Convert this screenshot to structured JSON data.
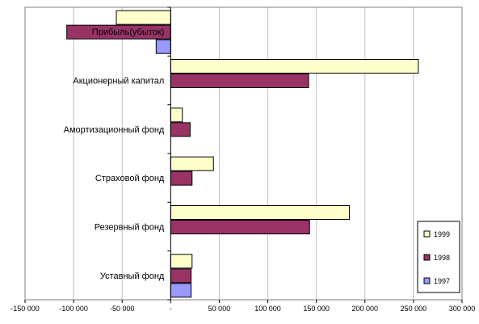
{
  "chart_data": {
    "type": "bar",
    "orientation": "horizontal",
    "categories": [
      "Прибыль(убыток)",
      "Акционерный капитал",
      "Амортизационный фонд",
      "Страховой фонд",
      "Резервный фонд",
      "Уставный фонд"
    ],
    "series": [
      {
        "name": "1999",
        "color": "#ffffcc",
        "values": [
          -56000,
          255000,
          12000,
          44000,
          184000,
          22000
        ]
      },
      {
        "name": "1998",
        "color": "#993366",
        "values": [
          -107000,
          142000,
          20000,
          22000,
          143000,
          21000
        ]
      },
      {
        "name": "1997",
        "color": "#9999ff",
        "values": [
          -15000,
          null,
          null,
          null,
          null,
          21000
        ]
      }
    ],
    "xlim": [
      -150000,
      300000
    ],
    "x_ticks": [
      -150000,
      -100000,
      -50000,
      0,
      50000,
      100000,
      150000,
      200000,
      250000,
      300000
    ],
    "x_tick_labels": [
      "-150 000",
      "-100 000",
      "-50 000",
      "-",
      "50 000",
      "100 000",
      "150 000",
      "200 000",
      "250 000",
      "300 000"
    ],
    "grid": "vertical",
    "legend_position": "right",
    "title": "",
    "xlabel": "",
    "ylabel": ""
  }
}
